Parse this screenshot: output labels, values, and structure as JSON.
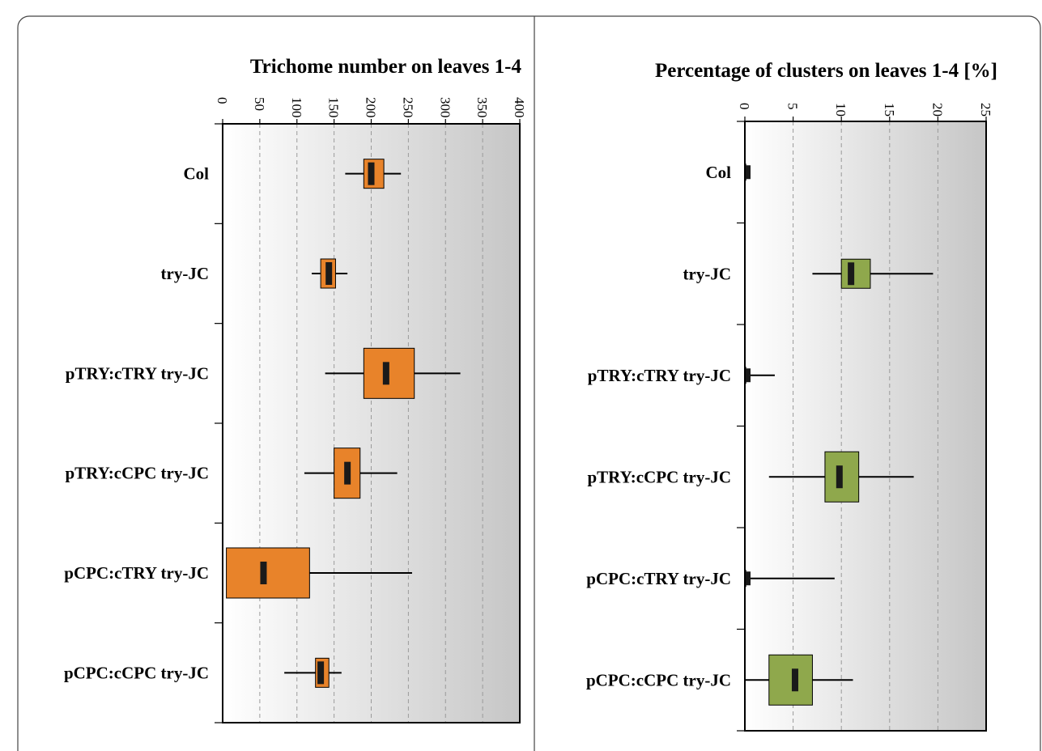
{
  "colors": {
    "left_box": "#e8832a",
    "right_box": "#8fa84c",
    "median": "#1a1a1a",
    "background_light": "#ffffff",
    "background_dark": "#c8c8c8"
  },
  "chart_data": [
    {
      "type": "boxplot",
      "orientation": "horizontal",
      "title": "Trichome number on leaves 1-4",
      "xlim": [
        0,
        400
      ],
      "xticks": [
        "0",
        "50",
        "100",
        "150",
        "200",
        "250",
        "300",
        "350",
        "400"
      ],
      "grid": true,
      "categories": [
        "Col",
        "try-JC",
        "pTRY:cTRY try-JC",
        "pTRY:cCPC try-JC",
        "pCPC:cTRY try-JC",
        "pCPC:cCPC try-JC"
      ],
      "boxes": [
        {
          "whisker_low": 165,
          "q1": 190,
          "median": 200,
          "q3": 217,
          "whisker_high": 240
        },
        {
          "whisker_low": 120,
          "q1": 132,
          "median": 143,
          "q3": 152,
          "whisker_high": 168
        },
        {
          "whisker_low": 138,
          "q1": 190,
          "median": 220,
          "q3": 258,
          "whisker_high": 320
        },
        {
          "whisker_low": 110,
          "q1": 150,
          "median": 168,
          "q3": 185,
          "whisker_high": 235
        },
        {
          "whisker_low": 5,
          "q1": 5,
          "median": 55,
          "q3": 117,
          "whisker_high": 255
        },
        {
          "whisker_low": 83,
          "q1": 125,
          "median": 132,
          "q3": 143,
          "whisker_high": 160
        }
      ]
    },
    {
      "type": "boxplot",
      "orientation": "horizontal",
      "title": "Percentage of clusters on leaves 1-4 [%]",
      "xlim": [
        0,
        25
      ],
      "xticks": [
        "0",
        "5",
        "10",
        "15",
        "20",
        "25"
      ],
      "grid": true,
      "categories": [
        "Col",
        "try-JC",
        "pTRY:cTRY try-JC",
        "pTRY:cCPC try-JC",
        "pCPC:cTRY try-JC",
        "pCPC:cCPC try-JC"
      ],
      "boxes": [
        {
          "whisker_low": 0,
          "q1": 0,
          "median": 0.1,
          "q3": 0.1,
          "whisker_high": 0.1
        },
        {
          "whisker_low": 7,
          "q1": 10,
          "median": 11,
          "q3": 13,
          "whisker_high": 19.5
        },
        {
          "whisker_low": 0,
          "q1": 0,
          "median": 0.1,
          "q3": 0.1,
          "whisker_high": 3.1
        },
        {
          "whisker_low": 2.5,
          "q1": 8.3,
          "median": 9.8,
          "q3": 11.8,
          "whisker_high": 17.5
        },
        {
          "whisker_low": 0,
          "q1": 0,
          "median": 0.1,
          "q3": 0.1,
          "whisker_high": 9.3
        },
        {
          "whisker_low": 0,
          "q1": 2.5,
          "median": 5.2,
          "q3": 7,
          "whisker_high": 11.2
        }
      ]
    }
  ]
}
